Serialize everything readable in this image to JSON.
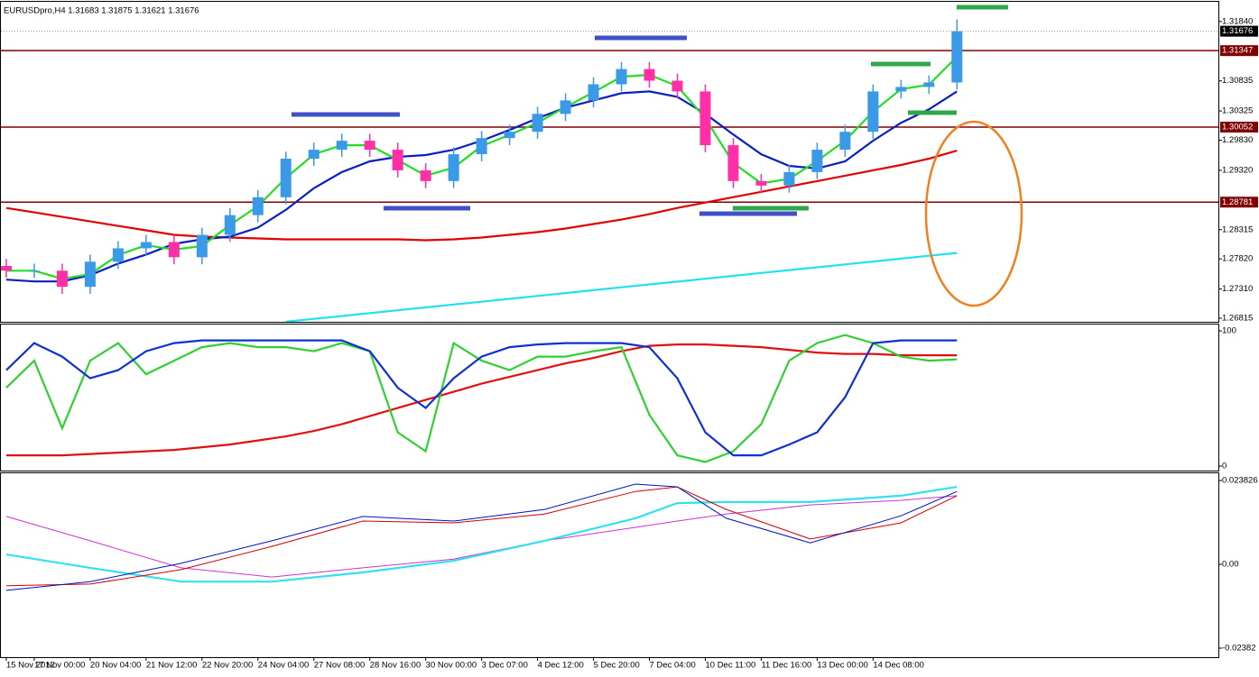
{
  "chart_data": [
    {
      "type": "candlestick",
      "title": "EURUSDpro,H4  1.31683 1.31875 1.31621 1.31676",
      "x": [
        0,
        4,
        8,
        12,
        16,
        20,
        24,
        28,
        32,
        36,
        40,
        44,
        48,
        52,
        56,
        60,
        64,
        68,
        72,
        76,
        80,
        84,
        88,
        92,
        96,
        100,
        104,
        108,
        112,
        116,
        120,
        124,
        128,
        132,
        136
      ],
      "open": [
        1.277,
        1.2762,
        1.2762,
        1.27347,
        1.27772,
        1.27999,
        1.28105,
        1.27848,
        1.28227,
        1.28561,
        1.28864,
        1.29517,
        1.29669,
        1.29821,
        1.29669,
        1.2932,
        1.29138,
        1.29593,
        1.29866,
        1.29973,
        1.30276,
        1.30504,
        1.30777,
        1.31035,
        1.30838,
        1.30656,
        1.29745,
        1.29138,
        1.29062,
        1.2929,
        1.29669,
        1.29973,
        1.30656,
        1.30732,
        1.30808
      ],
      "high": [
        1.2782,
        1.2774,
        1.2774,
        1.27892,
        1.28119,
        1.28225,
        1.28225,
        1.28347,
        1.28681,
        1.28984,
        1.29637,
        1.29789,
        1.29941,
        1.29941,
        1.29789,
        1.2944,
        1.29713,
        1.29986,
        1.30093,
        1.30396,
        1.30624,
        1.30897,
        1.31155,
        1.31155,
        1.30958,
        1.30776,
        1.29865,
        1.29258,
        1.2941,
        1.29789,
        1.30093,
        1.30776,
        1.30852,
        1.30928,
        1.31875
      ],
      "low": [
        1.275,
        1.275,
        1.27227,
        1.27227,
        1.27652,
        1.27879,
        1.27728,
        1.27728,
        1.28107,
        1.28441,
        1.28744,
        1.29397,
        1.29549,
        1.29549,
        1.292,
        1.29018,
        1.29018,
        1.29473,
        1.29746,
        1.29853,
        1.30156,
        1.30384,
        1.30657,
        1.30718,
        1.30536,
        1.29625,
        1.29018,
        1.28942,
        1.28942,
        1.2917,
        1.29549,
        1.29853,
        1.30536,
        1.30612,
        1.30688
      ],
      "close": [
        1.2762,
        1.2762,
        1.27347,
        1.27772,
        1.27999,
        1.28105,
        1.27848,
        1.28227,
        1.28561,
        1.28864,
        1.29517,
        1.29669,
        1.29821,
        1.29669,
        1.2932,
        1.29138,
        1.29593,
        1.29866,
        1.29973,
        1.30276,
        1.30504,
        1.30777,
        1.31035,
        1.30838,
        1.30656,
        1.29745,
        1.29138,
        1.29062,
        1.2929,
        1.29669,
        1.29973,
        1.30656,
        1.30732,
        1.30808,
        1.31676
      ],
      "up_color": "#3b9ae8",
      "down_color": "#ff2fa8",
      "series": [
        {
          "color": "#e00000",
          "bold": true,
          "values": [
            1.28683,
            1.28607,
            1.28531,
            1.28455,
            1.28379,
            1.28303,
            1.28227,
            1.28197,
            1.28182,
            1.28166,
            1.28151,
            1.28151,
            1.28151,
            1.28151,
            1.28151,
            1.28136,
            1.28151,
            1.28182,
            1.28227,
            1.28273,
            1.28334,
            1.2841,
            1.28486,
            1.28577,
            1.28683,
            1.28774,
            1.28865,
            1.28956,
            1.29047,
            1.29138,
            1.29229,
            1.2932,
            1.29411,
            1.29518,
            1.29654
          ]
        },
        {
          "color": "#22e0f0",
          "bold": true,
          "values": [
            null,
            null,
            null,
            null,
            null,
            null,
            null,
            null,
            null,
            null,
            1.26755,
            1.26804,
            1.26852,
            1.26901,
            1.26949,
            1.26998,
            1.27047,
            1.27095,
            1.27144,
            1.27192,
            1.27241,
            1.2729,
            1.27338,
            1.27387,
            1.27435,
            1.27484,
            1.27533,
            1.27581,
            1.2763,
            1.27678,
            1.27727,
            1.27776,
            1.27824,
            1.27873,
            1.27921
          ]
        },
        {
          "color": "#0a1fbf",
          "bold": true,
          "values": [
            1.27468,
            1.27438,
            1.27438,
            1.27544,
            1.27741,
            1.27893,
            1.28075,
            1.28151,
            1.28197,
            1.28349,
            1.28652,
            1.29017,
            1.2929,
            1.29472,
            1.29548,
            1.29578,
            1.29669,
            1.29821,
            1.30003,
            1.30201,
            1.30382,
            1.30504,
            1.30626,
            1.30656,
            1.30565,
            1.30277,
            1.29927,
            1.29593,
            1.29396,
            1.29351,
            1.29472,
            1.29821,
            1.30125,
            1.30352,
            1.30656
          ]
        },
        {
          "color": "#22dd22",
          "bold": true,
          "values": [
            1.2762,
            1.2762,
            1.27484,
            1.2756,
            1.27886,
            1.28052,
            1.27977,
            1.28038,
            1.28394,
            1.28713,
            1.29191,
            1.29593,
            1.29745,
            1.29745,
            1.29495,
            1.29229,
            1.29366,
            1.2973,
            1.2992,
            1.30125,
            1.3039,
            1.30641,
            1.30906,
            1.30937,
            1.30747,
            1.30201,
            1.29442,
            1.291,
            1.29176,
            1.2948,
            1.29821,
            1.30315,
            1.30694,
            1.3077,
            1.31242
          ]
        }
      ],
      "levels": [
        1.31347,
        1.30052,
        1.28781
      ],
      "level_color": "#800000",
      "last_price": 1.31676,
      "xlim": [
        -0.77,
        173.4
      ],
      "ylim": [
        1.26754,
        1.32174
      ],
      "yticks": [
        {
          "value": 1.3184,
          "label": "1.31840"
        },
        {
          "value": 1.30835,
          "label": "1.30835"
        },
        {
          "value": 1.30325,
          "label": "1.30325"
        },
        {
          "value": 1.2983,
          "label": "1.29830"
        },
        {
          "value": 1.2932,
          "label": "1.29320"
        },
        1.28315,
        {
          "value": 1.2782,
          "label": "1.27820"
        },
        {
          "value": 1.2731,
          "label": "1.27310"
        },
        1.26815
      ]
    },
    {
      "type": "line",
      "x": [
        0,
        4,
        8,
        12,
        16,
        20,
        24,
        28,
        32,
        36,
        40,
        44,
        48,
        52,
        56,
        60,
        64,
        68,
        72,
        76,
        80,
        84,
        88,
        92,
        96,
        100,
        104,
        108,
        112,
        116,
        120,
        124,
        128,
        132,
        136
      ],
      "series": [
        {
          "color": "#e01010",
          "bold": true,
          "values": [
            8,
            8,
            8,
            9,
            10,
            11,
            12,
            14,
            16,
            19,
            22,
            26,
            31,
            37,
            43,
            49,
            55,
            61,
            66,
            71,
            76,
            80,
            85,
            89,
            90,
            90,
            89,
            88,
            86,
            84,
            83,
            83,
            82,
            82,
            82
          ]
        },
        {
          "color": "#30d030",
          "bold": true,
          "values": [
            58,
            78,
            28,
            78,
            91,
            68,
            78,
            88,
            91,
            88,
            88,
            85,
            91,
            85,
            25,
            11,
            91,
            78,
            71,
            81,
            81,
            85,
            88,
            38,
            8,
            3,
            11,
            31,
            78,
            91,
            97,
            91,
            81,
            78,
            79
          ]
        },
        {
          "color": "#1030d0",
          "bold": true,
          "values": [
            71,
            91,
            81,
            65,
            71,
            85,
            91,
            93,
            93,
            93,
            93,
            93,
            93,
            85,
            58,
            43,
            65,
            81,
            88,
            90,
            91,
            91,
            91,
            88,
            65,
            25,
            8,
            8,
            16,
            25,
            51,
            91,
            93,
            93,
            93
          ]
        }
      ],
      "xlim": [
        -0.77,
        173.4
      ],
      "ylim": [
        -3.3,
        104.7
      ],
      "yticks": [
        100,
        0
      ]
    },
    {
      "type": "line",
      "x": [
        0,
        12,
        25,
        38,
        51,
        64,
        77,
        90,
        96,
        103,
        115,
        128,
        136
      ],
      "series": [
        {
          "color": "#cc33cc",
          "values": [
            0.0136,
            0.0067,
            -0.001,
            -0.0036,
            -0.001,
            0.0015,
            0.0067,
            0.0105,
            0.0123,
            0.0143,
            0.0169,
            0.0182,
            0.0195
          ]
        },
        {
          "color": "#33e0f0",
          "bold": true,
          "values": [
            0.0028,
            -0.001,
            -0.0049,
            -0.0049,
            -0.0023,
            0.001,
            0.0067,
            0.0131,
            0.0174,
            0.0177,
            0.0177,
            0.0195,
            0.022
          ]
        },
        {
          "color": "#d00000",
          "values": [
            -0.0061,
            -0.0056,
            -0.0015,
            0.0051,
            0.0123,
            0.0118,
            0.0143,
            0.0207,
            0.022,
            0.0156,
            0.0072,
            0.0118,
            0.0195
          ]
        },
        {
          "color": "#0010c0",
          "values": [
            -0.0074,
            -0.0049,
            0.0003,
            0.0067,
            0.0136,
            0.0123,
            0.0156,
            0.0228,
            0.022,
            0.0131,
            0.0061,
            0.0138,
            0.0207
          ]
        }
      ],
      "xlim": [
        -0.77,
        173.4
      ],
      "ylim": [
        -0.02638,
        0.02588
      ],
      "yticks": [
        0.023826,
        {
          "value": 0,
          "label": "0.00"
        },
        -0.02382
      ],
      "xticks": [
        {
          "value": 0,
          "label": "15 Nov 2012"
        },
        {
          "value": 4,
          "label": "17 Nov 00:00"
        },
        {
          "value": 12,
          "label": "20 Nov 04:00"
        },
        {
          "value": 20,
          "label": "21 Nov 12:00"
        },
        {
          "value": 28,
          "label": "22 Nov 20:00"
        },
        {
          "value": 36,
          "label": "24 Nov 04:00"
        },
        {
          "value": 44,
          "label": "27 Nov 08:00"
        },
        {
          "value": 52,
          "label": "28 Nov 16:00"
        },
        {
          "value": 60,
          "label": "30 Nov 00:00"
        },
        {
          "value": 68,
          "label": "3 Dec 07:00"
        },
        {
          "value": 76,
          "label": "4 Dec 12:00"
        },
        {
          "value": 84,
          "label": "5 Dec 20:00"
        },
        {
          "value": 92,
          "label": "7 Dec 04:00"
        },
        {
          "value": 100,
          "label": "10 Dec 11:00"
        },
        {
          "value": 108,
          "label": "11 Dec 16:00"
        },
        {
          "value": 116,
          "label": "13 Dec 00:00"
        },
        {
          "value": 124,
          "label": "14 Dec 08:00"
        }
      ]
    }
  ]
}
